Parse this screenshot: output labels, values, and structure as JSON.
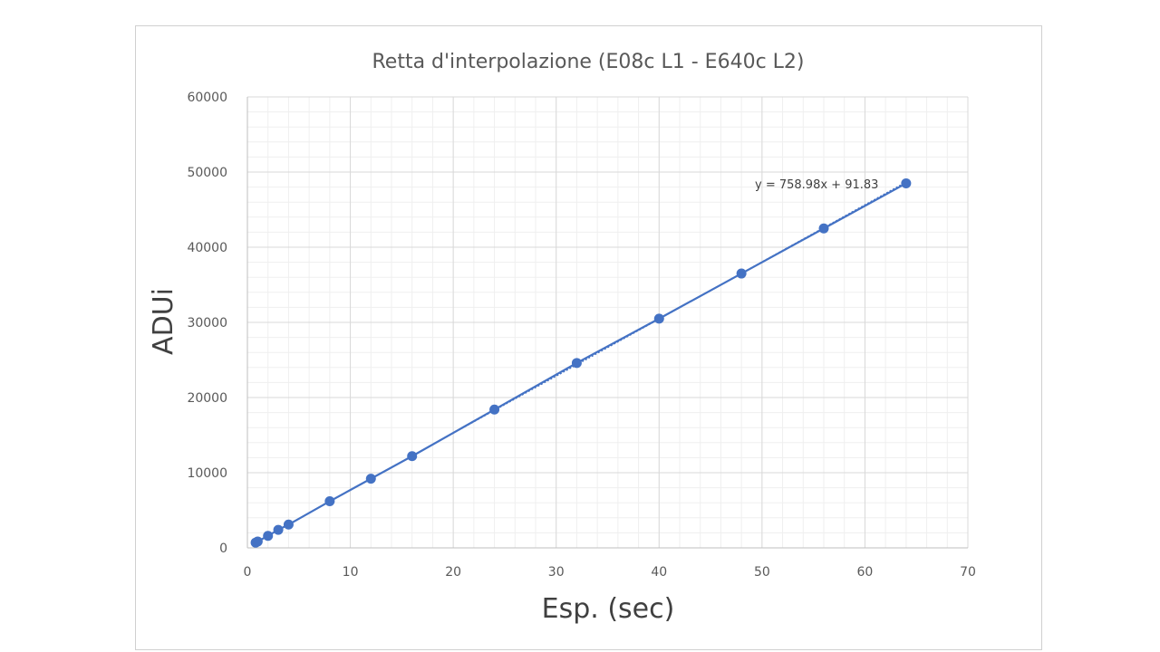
{
  "chart_data": {
    "type": "scatter",
    "title": "Retta d'interpolazione (E08c L1 - E640c L2)",
    "xlabel": "Esp. (sec)",
    "ylabel": "ADUi",
    "xlim": [
      0,
      70
    ],
    "ylim": [
      0,
      60000
    ],
    "x_ticks": [
      0,
      10,
      20,
      30,
      40,
      50,
      60,
      70
    ],
    "y_ticks": [
      0,
      10000,
      20000,
      30000,
      40000,
      50000,
      60000
    ],
    "x_tick_labels": [
      "0",
      "10",
      "20",
      "30",
      "40",
      "50",
      "60",
      "70"
    ],
    "y_tick_labels": [
      "0",
      "10000",
      "20000",
      "30000",
      "40000",
      "50000",
      "60000"
    ],
    "grid": "major and minor",
    "series": [
      {
        "x": [
          0.8,
          1,
          2,
          3,
          4,
          8,
          12,
          16,
          24,
          32,
          40,
          48,
          56,
          64
        ],
        "y": [
          700,
          850,
          1600,
          2400,
          3100,
          6200,
          9200,
          12200,
          18400,
          24600,
          30500,
          36500,
          42500,
          48500
        ],
        "color": "#4472C4"
      }
    ],
    "trendline": {
      "slope": 758.98,
      "intercept": 91.83,
      "label": "y = 758.98x + 91.83",
      "color": "#4472C4"
    }
  }
}
